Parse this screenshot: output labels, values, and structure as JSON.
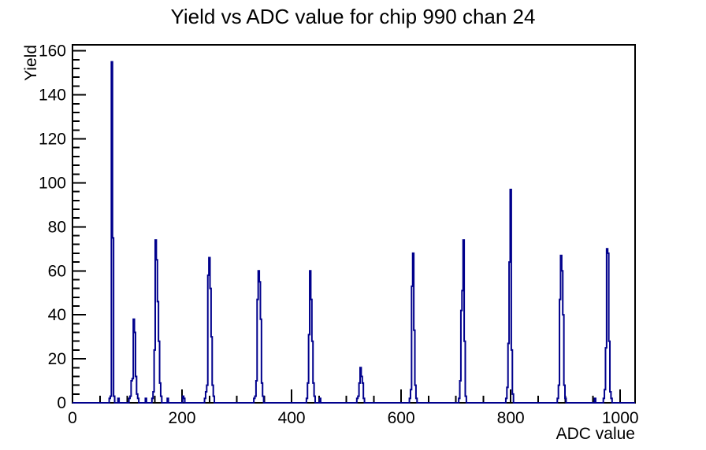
{
  "window": {
    "background": "#ffffff"
  },
  "chart_data": {
    "type": "bar",
    "style": "root-histogram-outline",
    "title": "Yield vs ADC value for chip 990 chan 24",
    "xlabel": "ADC value",
    "ylabel": "Yield",
    "xlim": [
      0,
      1027
    ],
    "ylim": [
      0,
      162.75
    ],
    "x_major_ticks": [
      0,
      200,
      400,
      600,
      800,
      1000
    ],
    "x_minor_step": 50,
    "y_major_ticks": [
      0,
      20,
      40,
      60,
      80,
      100,
      120,
      140,
      160
    ],
    "y_minor_step": 4,
    "grid": false,
    "legend": false,
    "line_color": "#00008c",
    "axis_color": "#000000",
    "bin_width": 2,
    "peaks_summary": [
      {
        "adc": 72,
        "yield": 155
      },
      {
        "adc": 112,
        "yield": 38
      },
      {
        "adc": 152,
        "yield": 74
      },
      {
        "adc": 250,
        "yield": 66
      },
      {
        "adc": 340,
        "yield": 60
      },
      {
        "adc": 434,
        "yield": 60
      },
      {
        "adc": 526,
        "yield": 16
      },
      {
        "adc": 622,
        "yield": 68
      },
      {
        "adc": 714,
        "yield": 74
      },
      {
        "adc": 800,
        "yield": 97
      },
      {
        "adc": 892,
        "yield": 67
      },
      {
        "adc": 976,
        "yield": 70
      }
    ],
    "bins": [
      [
        68,
        2
      ],
      [
        70,
        3
      ],
      [
        72,
        155
      ],
      [
        74,
        75
      ],
      [
        76,
        3
      ],
      [
        84,
        2
      ],
      [
        104,
        2
      ],
      [
        106,
        3
      ],
      [
        108,
        10
      ],
      [
        110,
        11
      ],
      [
        112,
        38
      ],
      [
        114,
        32
      ],
      [
        116,
        12
      ],
      [
        118,
        4
      ],
      [
        120,
        2
      ],
      [
        134,
        2
      ],
      [
        146,
        2
      ],
      [
        148,
        5
      ],
      [
        150,
        24
      ],
      [
        152,
        74
      ],
      [
        154,
        65
      ],
      [
        156,
        46
      ],
      [
        158,
        28
      ],
      [
        160,
        9
      ],
      [
        162,
        3
      ],
      [
        174,
        2
      ],
      [
        202,
        3
      ],
      [
        204,
        2
      ],
      [
        242,
        2
      ],
      [
        244,
        5
      ],
      [
        246,
        8
      ],
      [
        248,
        58
      ],
      [
        250,
        66
      ],
      [
        252,
        52
      ],
      [
        254,
        30
      ],
      [
        256,
        8
      ],
      [
        258,
        3
      ],
      [
        332,
        2
      ],
      [
        334,
        3
      ],
      [
        336,
        10
      ],
      [
        338,
        47
      ],
      [
        340,
        60
      ],
      [
        342,
        55
      ],
      [
        344,
        38
      ],
      [
        346,
        9
      ],
      [
        348,
        3
      ],
      [
        428,
        2
      ],
      [
        430,
        9
      ],
      [
        432,
        31
      ],
      [
        434,
        60
      ],
      [
        436,
        47
      ],
      [
        438,
        28
      ],
      [
        440,
        9
      ],
      [
        442,
        3
      ],
      [
        452,
        2
      ],
      [
        520,
        2
      ],
      [
        522,
        3
      ],
      [
        524,
        9
      ],
      [
        526,
        16
      ],
      [
        528,
        12
      ],
      [
        530,
        9
      ],
      [
        532,
        2
      ],
      [
        616,
        2
      ],
      [
        618,
        6
      ],
      [
        620,
        53
      ],
      [
        622,
        68
      ],
      [
        624,
        33
      ],
      [
        626,
        8
      ],
      [
        628,
        2
      ],
      [
        706,
        2
      ],
      [
        708,
        10
      ],
      [
        710,
        42
      ],
      [
        712,
        51
      ],
      [
        714,
        74
      ],
      [
        716,
        28
      ],
      [
        718,
        3
      ],
      [
        792,
        2
      ],
      [
        794,
        7
      ],
      [
        796,
        27
      ],
      [
        798,
        64
      ],
      [
        800,
        97
      ],
      [
        802,
        24
      ],
      [
        804,
        4
      ],
      [
        886,
        2
      ],
      [
        888,
        8
      ],
      [
        890,
        47
      ],
      [
        892,
        67
      ],
      [
        894,
        60
      ],
      [
        896,
        40
      ],
      [
        898,
        8
      ],
      [
        900,
        2
      ],
      [
        954,
        2
      ],
      [
        970,
        2
      ],
      [
        972,
        6
      ],
      [
        974,
        25
      ],
      [
        976,
        70
      ],
      [
        978,
        68
      ],
      [
        980,
        28
      ],
      [
        982,
        5
      ],
      [
        984,
        2
      ]
    ]
  }
}
